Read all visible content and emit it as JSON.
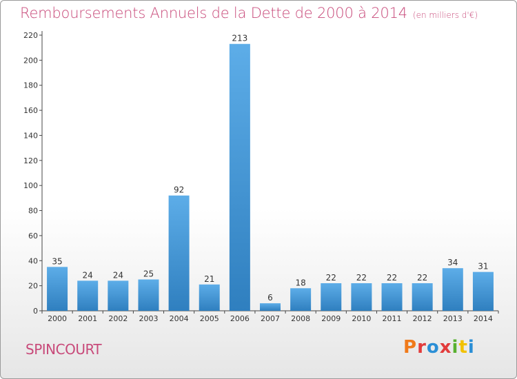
{
  "title": "Remboursements Annuels de la Dette de 2000 à 2014",
  "subtitle": "(en milliers d'€)",
  "town": "SPINCOURT",
  "brand": {
    "text": "Proxiti",
    "colors": [
      "#f07a1a",
      "#e23c3c",
      "#2b8fd6",
      "#e23c3c",
      "#58b030",
      "#f2c100",
      "#2b8fd6"
    ]
  },
  "colors": {
    "title": "#c84a7a",
    "bar_light": "#5dade8",
    "bar_dark": "#2f7fbf",
    "axis": "#444444"
  },
  "chart_data": {
    "type": "bar",
    "categories": [
      "2000",
      "2001",
      "2002",
      "2003",
      "2004",
      "2005",
      "2006",
      "2007",
      "2008",
      "2009",
      "2010",
      "2011",
      "2012",
      "2013",
      "2014"
    ],
    "values": [
      35,
      24,
      24,
      25,
      92,
      21,
      213,
      6,
      18,
      22,
      22,
      22,
      22,
      34,
      31
    ],
    "ylim": [
      0,
      220
    ],
    "yticks": [
      0,
      20,
      40,
      60,
      80,
      100,
      120,
      140,
      160,
      180,
      200,
      220
    ],
    "grid": false,
    "xlabel": "",
    "ylabel": ""
  }
}
